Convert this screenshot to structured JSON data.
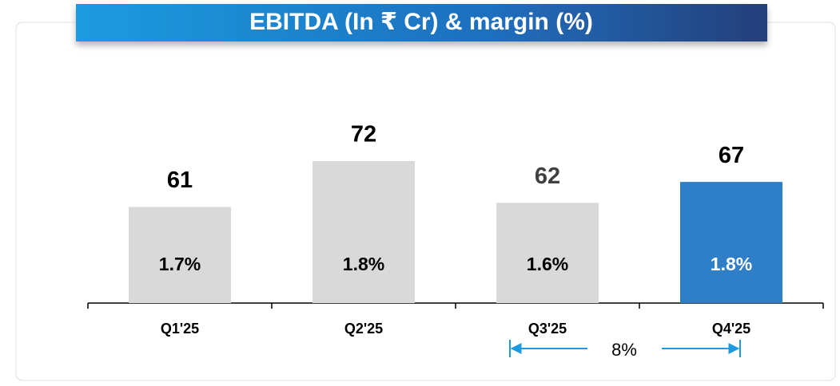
{
  "chart_data": {
    "type": "bar",
    "title": "EBITDA (In ₹ Cr) & margin (%)",
    "categories": [
      "Q1'25",
      "Q2'25",
      "Q3'25",
      "Q4'25"
    ],
    "values": [
      61,
      72,
      62,
      67
    ],
    "colors": [
      "#d9d9d9",
      "#d9d9d9",
      "#d9d9d9",
      "#2e7fc8"
    ],
    "value_label_colors": [
      "#000000",
      "#000000",
      "#404040",
      "#000000"
    ],
    "margins": [
      1.7,
      1.8,
      1.6,
      1.8
    ],
    "margin_labels": [
      "1.7%",
      "1.8%",
      "1.6%",
      "1.8%"
    ],
    "margin_label_colors": [
      "#000000",
      "#000000",
      "#000000",
      "#ffffff"
    ],
    "ylim": [
      38,
      80
    ],
    "annotation": "8%"
  }
}
